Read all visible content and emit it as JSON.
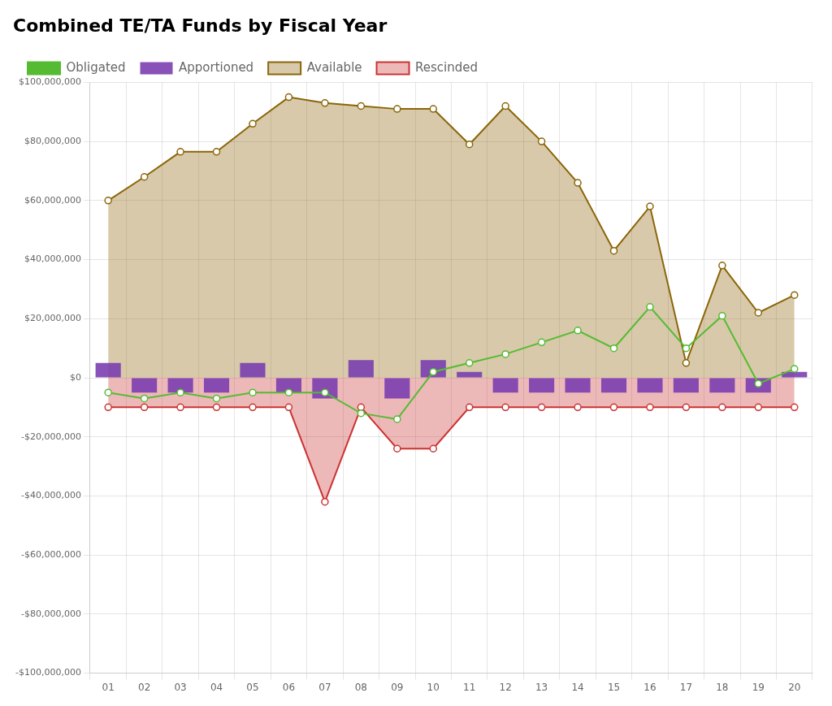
{
  "chart_data": {
    "type": "bar",
    "title": "Combined TE/TA Funds by Fiscal Year",
    "categories": [
      "01",
      "02",
      "03",
      "04",
      "05",
      "06",
      "07",
      "08",
      "09",
      "10",
      "11",
      "12",
      "13",
      "14",
      "15",
      "16",
      "17",
      "18",
      "19",
      "20"
    ],
    "series": [
      {
        "name": "Available",
        "type": "area",
        "color": "#8B6508",
        "marker": "circle",
        "values": [
          60000000,
          68000000,
          76500000,
          76500000,
          86000000,
          95000000,
          93000000,
          92000000,
          91000000,
          91000000,
          79000000,
          92000000,
          80000000,
          66000000,
          43000000,
          58000000,
          5000000,
          38000000,
          22000000,
          28000000
        ]
      },
      {
        "name": "Apportioned",
        "type": "bar",
        "color": "#7B3FB0",
        "values": [
          5000000,
          -5000000,
          -5000000,
          -5000000,
          5000000,
          -5000000,
          -7000000,
          6000000,
          -7000000,
          6000000,
          2000000,
          -5000000,
          -5000000,
          -5000000,
          -5000000,
          -5000000,
          -5000000,
          -5000000,
          -5000000,
          2000000
        ]
      },
      {
        "name": "Obligated",
        "type": "line",
        "color": "#55BB33",
        "marker": "circle",
        "values": [
          -5000000,
          -7000000,
          -5000000,
          -7000000,
          -5000000,
          -5000000,
          -5000000,
          -12000000,
          -14000000,
          2000000,
          5000000,
          8000000,
          12000000,
          16000000,
          10000000,
          24000000,
          10000000,
          21000000,
          -2000000,
          3000000
        ]
      },
      {
        "name": "Rescinded",
        "type": "area",
        "color": "#CC3333",
        "marker": "circle",
        "values": [
          -10000000,
          -10000000,
          -10000000,
          -10000000,
          -10000000,
          -10000000,
          -42000000,
          -10000000,
          -24000000,
          -24000000,
          -10000000,
          -10000000,
          -10000000,
          -10000000,
          -10000000,
          -10000000,
          -10000000,
          -10000000,
          -10000000,
          -10000000
        ]
      }
    ],
    "ylim": [
      -100000000,
      100000000
    ],
    "yticks": [
      {
        "value": -100000000,
        "label": "-$100,000,000"
      },
      {
        "value": -80000000,
        "label": "-$80,000,000"
      },
      {
        "value": -60000000,
        "label": "-$60,000,000"
      },
      {
        "value": -40000000,
        "label": "-$40,000,000"
      },
      {
        "value": -20000000,
        "label": "-$20,000,000"
      },
      {
        "value": 0,
        "label": "$0"
      },
      {
        "value": 20000000,
        "label": "$20,000,000"
      },
      {
        "value": 40000000,
        "label": "$40,000,000"
      },
      {
        "value": 60000000,
        "label": "$60,000,000"
      },
      {
        "value": 80000000,
        "label": "$80,000,000"
      },
      {
        "value": 100000000,
        "label": "$100,000,000"
      }
    ],
    "grid": true,
    "legend": "top"
  }
}
